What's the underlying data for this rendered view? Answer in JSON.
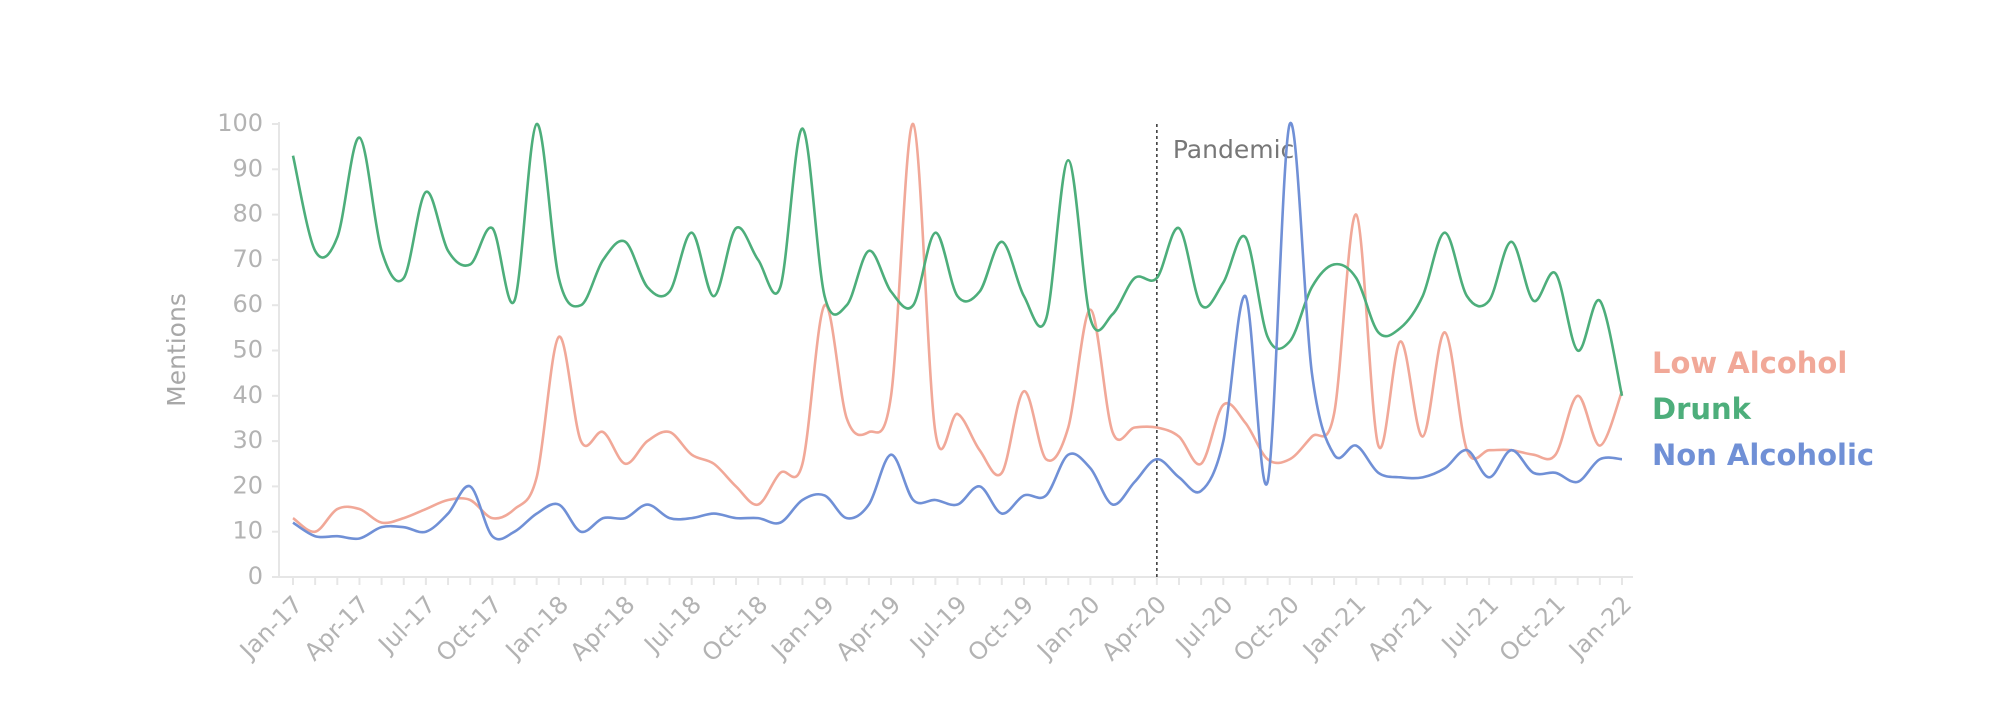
{
  "chart_data": {
    "type": "line",
    "y_label": "Mentions",
    "categories": [
      "Jan-17",
      null,
      null,
      "Apr-17",
      null,
      null,
      "Jul-17",
      null,
      null,
      "Oct-17",
      null,
      null,
      "Jan-18",
      null,
      null,
      "Apr-18",
      null,
      null,
      "Jul-18",
      null,
      null,
      "Oct-18",
      null,
      null,
      "Jan-19",
      null,
      null,
      "Apr-19",
      null,
      null,
      "Jul-19",
      null,
      null,
      "Oct-19",
      null,
      null,
      "Jan-20",
      null,
      null,
      "Apr-20",
      null,
      null,
      "Jul-20",
      null,
      null,
      "Oct-20",
      null,
      null,
      "Jan-21",
      null,
      null,
      "Apr-21",
      null,
      null,
      "Jul-21",
      null,
      null,
      "Oct-21",
      null,
      null,
      "Jan-22"
    ],
    "series": [
      {
        "name": "Low Alcohol",
        "color": "#f1a898",
        "values": [
          13,
          10,
          15,
          15,
          12,
          13,
          15,
          17,
          17,
          13,
          15,
          22,
          53,
          30,
          32,
          25,
          30,
          32,
          27,
          25,
          20,
          16,
          23,
          25,
          60,
          35,
          32,
          40,
          100,
          32,
          36,
          28,
          23,
          41,
          26,
          33,
          59,
          32,
          33,
          33,
          31,
          25,
          38,
          34,
          26,
          26,
          31,
          36,
          80,
          29,
          52,
          31,
          54,
          28,
          28,
          28,
          27,
          27,
          40,
          29,
          41
        ]
      },
      {
        "name": "Drunk",
        "color": "#4dae7b",
        "values": [
          93,
          72,
          75,
          97,
          72,
          66,
          85,
          72,
          69,
          77,
          61,
          100,
          66,
          60,
          70,
          74,
          64,
          63,
          76,
          62,
          77,
          70,
          64,
          99,
          62,
          60,
          72,
          63,
          60,
          76,
          62,
          63,
          74,
          62,
          57,
          92,
          57,
          58,
          66,
          66,
          77,
          60,
          65,
          75,
          53,
          52,
          64,
          69,
          66,
          54,
          55,
          62,
          76,
          62,
          61,
          74,
          61,
          67,
          50,
          61,
          40
        ]
      },
      {
        "name": "Non Alcoholic",
        "color": "#7090d6",
        "values": [
          12,
          9,
          9,
          8.5,
          11,
          11,
          10,
          14,
          20,
          9,
          10,
          14,
          16,
          10,
          13,
          13,
          16,
          13,
          13,
          14,
          13,
          13,
          12,
          17,
          18,
          13,
          16,
          27,
          17,
          17,
          16,
          20,
          14,
          18,
          18,
          27,
          24,
          16,
          21,
          26,
          22,
          19,
          30,
          62,
          21,
          100,
          45,
          27,
          29,
          23,
          22,
          22,
          24,
          28,
          22,
          28,
          23,
          23,
          21,
          26,
          26
        ]
      }
    ],
    "ylim": [
      0,
      100
    ],
    "yticks": [
      0,
      10,
      20,
      30,
      40,
      50,
      60,
      70,
      80,
      90,
      100
    ],
    "annotation": {
      "text": "Pandemic",
      "x": "Apr-20"
    }
  }
}
